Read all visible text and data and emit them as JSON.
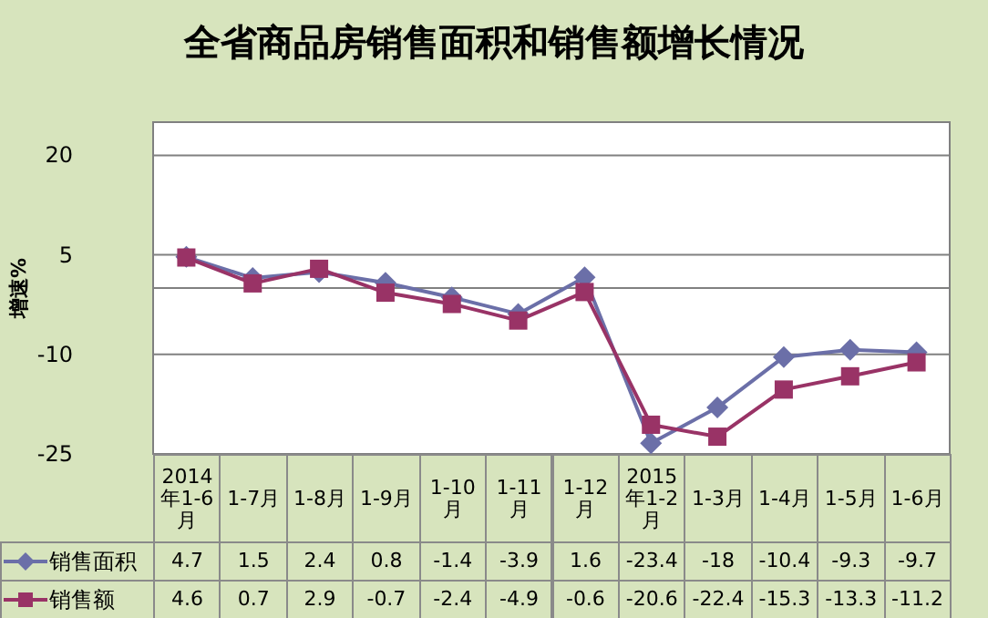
{
  "chart_data": {
    "type": "line",
    "title": "全省商品房销售面积和销售额增长情况",
    "ylabel": "增速%",
    "categories": [
      "2014年1-6月",
      "1-7月",
      "1-8月",
      "1-9月",
      "1-10月",
      "1-11月",
      "1-12月",
      "2015年1-2月",
      "1-3月",
      "1-4月",
      "1-5月",
      "1-6月"
    ],
    "series": [
      {
        "name": "销售面积",
        "color": "#6b6fa8",
        "marker": "diamond",
        "values": [
          4.7,
          1.5,
          2.4,
          0.8,
          -1.4,
          -3.9,
          1.6,
          -23.4,
          -18,
          -10.4,
          -9.3,
          -9.7
        ]
      },
      {
        "name": "销售额",
        "color": "#993366",
        "marker": "square",
        "values": [
          4.6,
          0.7,
          2.9,
          -0.7,
          -2.4,
          -4.9,
          -0.6,
          -20.6,
          -22.4,
          -15.3,
          -13.3,
          -11.2
        ]
      }
    ],
    "ylim": [
      -25,
      25
    ],
    "yticks": [
      20,
      5,
      {
        "value": 0,
        "label": null
      },
      -10,
      -25
    ],
    "grid": "y",
    "legend": "bottom",
    "data_labels": true
  }
}
